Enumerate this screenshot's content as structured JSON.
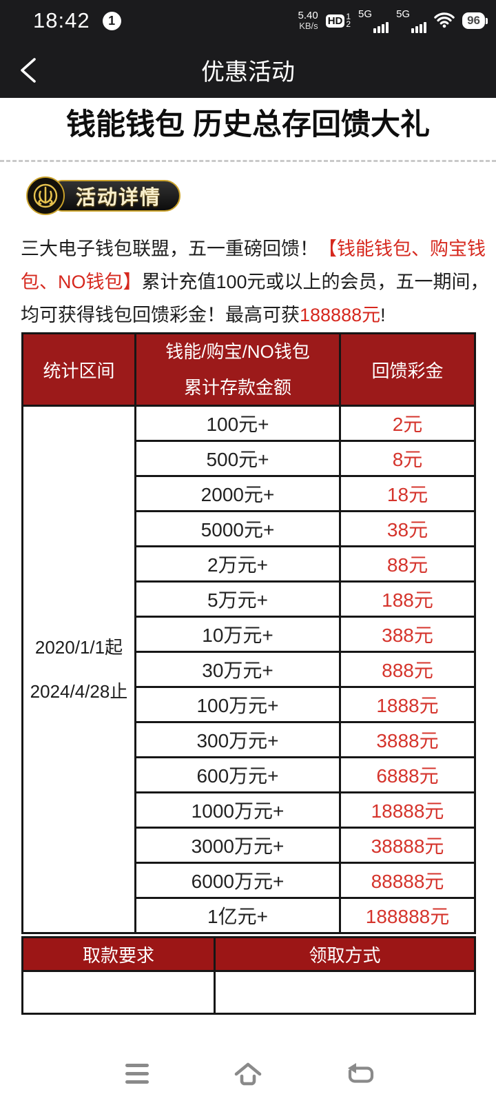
{
  "status_bar": {
    "time": "18:42",
    "notification_count": "1",
    "net_speed_value": "5.40",
    "net_speed_unit": "KB/s",
    "hd_label": "HD",
    "sim1": "1",
    "sim2": "2",
    "signal1_label": "5G",
    "signal2_label": "5G",
    "battery_percent": "96"
  },
  "app_header": {
    "title": "优惠活动"
  },
  "promo": {
    "main_title": "钱能钱包 历史总存回馈大礼",
    "badge_label": "活动详情",
    "intro_lines": [
      [
        {
          "t": "三大电子钱包联盟，五一重磅回馈！",
          "c": "black"
        },
        {
          "t": "【钱能钱包、购宝钱",
          "c": "red"
        }
      ],
      [
        {
          "t": "包、NO钱包】",
          "c": "red"
        },
        {
          "t": "累计充值100元或以上的会员，五一期间，",
          "c": "black"
        }
      ],
      [
        {
          "t": "均可获得钱包回馈彩金！最高可获",
          "c": "black"
        },
        {
          "t": "188888元",
          "c": "red"
        },
        {
          "t": "!",
          "c": "black"
        }
      ]
    ]
  },
  "deposit_table": {
    "headers": {
      "period": "统计区间",
      "amount_line1": "钱能/购宝/NO钱包",
      "amount_line2": "累计存款金额",
      "bonus": "回馈彩金"
    },
    "period": {
      "start": "2020/1/1起",
      "end": "2024/4/28止"
    },
    "rows": [
      {
        "amount": "100元+",
        "bonus": "2元"
      },
      {
        "amount": "500元+",
        "bonus": "8元"
      },
      {
        "amount": "2000元+",
        "bonus": "18元"
      },
      {
        "amount": "5000元+",
        "bonus": "38元"
      },
      {
        "amount": "2万元+",
        "bonus": "88元"
      },
      {
        "amount": "5万元+",
        "bonus": "188元"
      },
      {
        "amount": "10万元+",
        "bonus": "388元"
      },
      {
        "amount": "30万元+",
        "bonus": "888元"
      },
      {
        "amount": "100万元+",
        "bonus": "1888元"
      },
      {
        "amount": "300万元+",
        "bonus": "3888元"
      },
      {
        "amount": "600万元+",
        "bonus": "6888元"
      },
      {
        "amount": "1000万元+",
        "bonus": "18888元"
      },
      {
        "amount": "3000万元+",
        "bonus": "38888元"
      },
      {
        "amount": "6000万元+",
        "bonus": "88888元"
      },
      {
        "amount": "1亿元+",
        "bonus": "188888元"
      }
    ]
  },
  "claim_table": {
    "headers": {
      "withdraw": "取款要求",
      "claim": "领取方式"
    }
  },
  "nav_bar": {
    "icons": [
      "menu",
      "home",
      "back"
    ]
  },
  "colors": {
    "table_header_red": "#9C1A1A",
    "intro_red": "#D6281E",
    "bonus_value_red": "#D5342C",
    "badge_gold": "#CAA22B",
    "topbar_black": "#1B1B1D",
    "nav_icon_gray": "#8A8A8A"
  }
}
